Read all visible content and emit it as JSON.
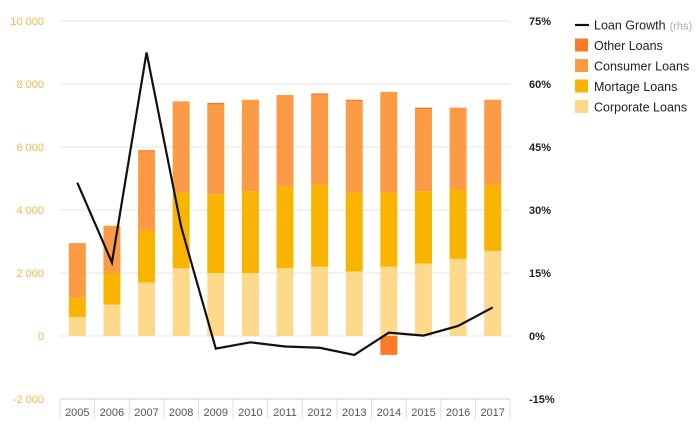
{
  "chart_data": {
    "type": "bar",
    "stacked": true,
    "categories": [
      "2005",
      "2006",
      "2007",
      "2008",
      "2009",
      "2010",
      "2011",
      "2012",
      "2013",
      "2014",
      "2015",
      "2016",
      "2017"
    ],
    "left_axis": {
      "ylim": [
        -2000,
        10000
      ],
      "ticks": [
        -2000,
        0,
        2000,
        4000,
        6000,
        8000,
        10000
      ],
      "tick_labels": [
        "-2 000",
        "0",
        "2 000",
        "4 000",
        "6 000",
        "8 000",
        "10 000"
      ]
    },
    "right_axis": {
      "ylim": [
        -15,
        75
      ],
      "ticks": [
        -15,
        0,
        15,
        30,
        45,
        60,
        75
      ],
      "tick_labels": [
        "-15%",
        "0%",
        "15%",
        "30%",
        "45%",
        "60%",
        "75%"
      ]
    },
    "series": [
      {
        "name": "Corporate Loans",
        "type": "bar",
        "color": "#fed98b",
        "values": [
          600,
          1000,
          1700,
          2150,
          2000,
          2000,
          2150,
          2200,
          2050,
          2200,
          2300,
          2450,
          2700
        ]
      },
      {
        "name": "Mortage Loans",
        "type": "bar",
        "color": "#f9b400",
        "values": [
          600,
          1000,
          1650,
          2400,
          2500,
          2600,
          2600,
          2600,
          2500,
          2350,
          2300,
          2200,
          2100
        ]
      },
      {
        "name": "Consumer Loans",
        "type": "bar",
        "color": "#fd9a46",
        "values": [
          1750,
          1500,
          2500,
          2900,
          2850,
          2900,
          2900,
          2850,
          2900,
          3200,
          2600,
          2600,
          2700
        ]
      },
      {
        "name": "Other Loans",
        "type": "bar",
        "color": "#fa7a2a",
        "values": [
          0,
          0,
          50,
          0,
          50,
          0,
          0,
          50,
          50,
          0,
          50,
          0,
          0
        ]
      },
      {
        "name": "Other Loans (negative)",
        "type": "bar",
        "color": "#fa7a2a",
        "values": [
          0,
          0,
          0,
          0,
          0,
          0,
          0,
          0,
          0,
          -600,
          0,
          0,
          0
        ]
      },
      {
        "name": "Loan Growth",
        "type": "line",
        "axis": "right",
        "color": "#111111",
        "values": [
          36.5,
          17.5,
          67.5,
          26,
          -3,
          -1.5,
          -2.5,
          -2.8,
          -4.5,
          0.8,
          0.1,
          2.4,
          6.8
        ]
      }
    ],
    "legend": {
      "position": "top-right",
      "items": [
        {
          "label": "Loan Growth",
          "suffix": "(rhs)",
          "kind": "line",
          "color": "#111111"
        },
        {
          "label": "Other Loans",
          "kind": "box",
          "color": "#fa7a2a"
        },
        {
          "label": "Consumer Loans",
          "kind": "box",
          "color": "#fd9a46"
        },
        {
          "label": "Mortage Loans",
          "kind": "box",
          "color": "#f9b400"
        },
        {
          "label": "Corporate Loans",
          "kind": "box",
          "color": "#fed98b"
        }
      ]
    },
    "grid": true,
    "title": "",
    "xlabel": "",
    "ylabel": ""
  }
}
